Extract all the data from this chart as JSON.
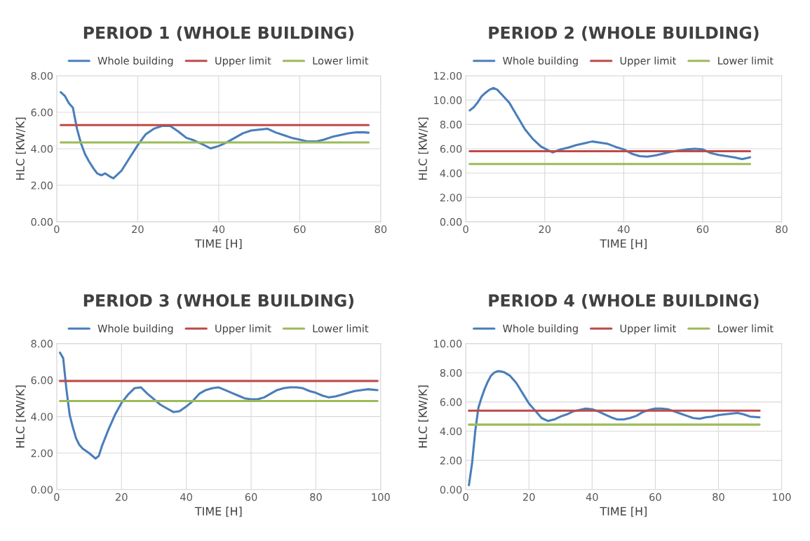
{
  "chart_data": [
    {
      "type": "line",
      "title": "PERIOD 1 (WHOLE BUILDING)",
      "xlabel": "TIME [H]",
      "ylabel": "HLC [KW/K]",
      "xlim": [
        0,
        80
      ],
      "xticks": [
        0,
        20,
        40,
        60,
        80
      ],
      "ylim": [
        0,
        8
      ],
      "yticks": [
        {
          "value": 0,
          "label": "0.00"
        },
        {
          "value": 2,
          "label": "2.00"
        },
        {
          "value": 4,
          "label": "4.00"
        },
        {
          "value": 6,
          "label": "6.00"
        },
        {
          "value": 8,
          "label": "8.00"
        }
      ],
      "grid": true,
      "legend": "top",
      "series": [
        {
          "name": "Whole building",
          "color": "#4a7ebb",
          "x": [
            1,
            2,
            3,
            4,
            5,
            6,
            7,
            8,
            9,
            10,
            11,
            12,
            13,
            14,
            16,
            18,
            20,
            22,
            24,
            26,
            28,
            30,
            32,
            34,
            36,
            38,
            40,
            42,
            44,
            46,
            48,
            50,
            52,
            54,
            56,
            58,
            60,
            62,
            64,
            66,
            68,
            70,
            72,
            74,
            76,
            77
          ],
          "values": [
            7.1,
            6.9,
            6.5,
            6.25,
            5.1,
            4.3,
            3.7,
            3.3,
            2.95,
            2.65,
            2.55,
            2.65,
            2.5,
            2.38,
            2.8,
            3.5,
            4.2,
            4.8,
            5.1,
            5.25,
            5.25,
            4.95,
            4.6,
            4.45,
            4.25,
            4.02,
            4.15,
            4.35,
            4.6,
            4.85,
            5.0,
            5.05,
            5.1,
            4.9,
            4.75,
            4.6,
            4.5,
            4.4,
            4.4,
            4.5,
            4.65,
            4.75,
            4.85,
            4.9,
            4.9,
            4.88
          ]
        },
        {
          "name": "Upper limit",
          "color": "#be4b48",
          "x": [
            1,
            77
          ],
          "values": [
            5.3,
            5.3
          ]
        },
        {
          "name": "Lower limit",
          "color": "#9bbb59",
          "x": [
            1,
            77
          ],
          "values": [
            4.35,
            4.35
          ]
        }
      ]
    },
    {
      "type": "line",
      "title": "PERIOD 2 (WHOLE BUILDING)",
      "xlabel": "TIME [H]",
      "ylabel": "HLC [KW/K]",
      "xlim": [
        0,
        80
      ],
      "xticks": [
        0,
        20,
        40,
        60,
        80
      ],
      "ylim": [
        0,
        12
      ],
      "yticks": [
        {
          "value": 0,
          "label": "0.00"
        },
        {
          "value": 2,
          "label": "2.00"
        },
        {
          "value": 4,
          "label": "4.00"
        },
        {
          "value": 6,
          "label": "6.00"
        },
        {
          "value": 8,
          "label": "8.00"
        },
        {
          "value": 10,
          "label": "10.00"
        },
        {
          "value": 12,
          "label": "12.00"
        }
      ],
      "grid": true,
      "legend": "top",
      "series": [
        {
          "name": "Whole building",
          "color": "#4a7ebb",
          "x": [
            1,
            2,
            3,
            4,
            5,
            6,
            7,
            8,
            9,
            11,
            13,
            15,
            17,
            19,
            21,
            22,
            24,
            26,
            28,
            30,
            32,
            34,
            36,
            38,
            40,
            42,
            44,
            46,
            48,
            50,
            52,
            54,
            56,
            58,
            60,
            62,
            64,
            66,
            68,
            70,
            72
          ],
          "values": [
            9.15,
            9.4,
            9.8,
            10.3,
            10.6,
            10.85,
            11.0,
            10.85,
            10.5,
            9.8,
            8.7,
            7.6,
            6.8,
            6.2,
            5.85,
            5.7,
            5.95,
            6.1,
            6.3,
            6.45,
            6.6,
            6.5,
            6.4,
            6.15,
            5.95,
            5.6,
            5.4,
            5.35,
            5.45,
            5.6,
            5.75,
            5.85,
            5.95,
            6.0,
            5.95,
            5.65,
            5.5,
            5.4,
            5.3,
            5.15,
            5.3
          ]
        },
        {
          "name": "Upper limit",
          "color": "#be4b48",
          "x": [
            1,
            72
          ],
          "values": [
            5.8,
            5.8
          ]
        },
        {
          "name": "Lower limit",
          "color": "#9bbb59",
          "x": [
            1,
            72
          ],
          "values": [
            4.75,
            4.75
          ]
        }
      ]
    },
    {
      "type": "line",
      "title": "PERIOD 3 (WHOLE BUILDING)",
      "xlabel": "TIME [H]",
      "ylabel": "HLC [KW/K]",
      "xlim": [
        0,
        100
      ],
      "xticks": [
        0,
        20,
        40,
        60,
        80,
        100
      ],
      "ylim": [
        0,
        8
      ],
      "yticks": [
        {
          "value": 0,
          "label": "0.00"
        },
        {
          "value": 2,
          "label": "2.00"
        },
        {
          "value": 4,
          "label": "4.00"
        },
        {
          "value": 6,
          "label": "6.00"
        },
        {
          "value": 8,
          "label": "8.00"
        }
      ],
      "grid": true,
      "legend": "top",
      "series": [
        {
          "name": "Whole building",
          "color": "#4a7ebb",
          "x": [
            1,
            2,
            3,
            4,
            5,
            6,
            7,
            8,
            10,
            12,
            13,
            14,
            16,
            18,
            20,
            22,
            24,
            26,
            28,
            30,
            32,
            34,
            36,
            38,
            40,
            42,
            44,
            46,
            48,
            50,
            52,
            54,
            56,
            58,
            60,
            62,
            64,
            66,
            68,
            70,
            72,
            74,
            76,
            78,
            80,
            82,
            84,
            86,
            88,
            90,
            92,
            94,
            96,
            99
          ],
          "values": [
            7.5,
            7.2,
            5.5,
            4.1,
            3.4,
            2.8,
            2.45,
            2.25,
            2.0,
            1.7,
            1.85,
            2.4,
            3.3,
            4.1,
            4.75,
            5.2,
            5.55,
            5.6,
            5.25,
            4.95,
            4.65,
            4.45,
            4.25,
            4.3,
            4.55,
            4.85,
            5.25,
            5.45,
            5.55,
            5.6,
            5.45,
            5.3,
            5.15,
            5.0,
            4.95,
            4.95,
            5.05,
            5.25,
            5.45,
            5.55,
            5.6,
            5.6,
            5.55,
            5.4,
            5.3,
            5.15,
            5.05,
            5.1,
            5.2,
            5.3,
            5.4,
            5.45,
            5.5,
            5.45
          ]
        },
        {
          "name": "Upper limit",
          "color": "#be4b48",
          "x": [
            1,
            99
          ],
          "values": [
            5.95,
            5.95
          ]
        },
        {
          "name": "Lower limit",
          "color": "#9bbb59",
          "x": [
            1,
            99
          ],
          "values": [
            4.85,
            4.85
          ]
        }
      ]
    },
    {
      "type": "line",
      "title": "PERIOD 4 (WHOLE BUILDING)",
      "xlabel": "TIME [H]",
      "ylabel": "HLC [KW/K]",
      "xlim": [
        0,
        100
      ],
      "xticks": [
        0,
        20,
        40,
        60,
        80,
        100
      ],
      "ylim": [
        0,
        10
      ],
      "yticks": [
        {
          "value": 0,
          "label": "0.00"
        },
        {
          "value": 2,
          "label": "2.00"
        },
        {
          "value": 4,
          "label": "4.00"
        },
        {
          "value": 6,
          "label": "6.00"
        },
        {
          "value": 8,
          "label": "8.00"
        },
        {
          "value": 10,
          "label": "10.00"
        }
      ],
      "grid": true,
      "legend": "top",
      "series": [
        {
          "name": "Whole building",
          "color": "#4a7ebb",
          "x": [
            1,
            2,
            3,
            4,
            5,
            6,
            7,
            8,
            9,
            10,
            11,
            12,
            14,
            16,
            18,
            20,
            22,
            24,
            26,
            28,
            30,
            32,
            34,
            36,
            38,
            40,
            42,
            44,
            46,
            48,
            50,
            52,
            54,
            56,
            58,
            60,
            62,
            64,
            66,
            68,
            70,
            72,
            74,
            76,
            78,
            80,
            82,
            84,
            86,
            88,
            90,
            93
          ],
          "values": [
            0.3,
            1.8,
            4.0,
            5.6,
            6.3,
            6.9,
            7.4,
            7.8,
            8.0,
            8.1,
            8.1,
            8.05,
            7.8,
            7.3,
            6.6,
            5.9,
            5.4,
            4.9,
            4.7,
            4.8,
            5.0,
            5.15,
            5.35,
            5.45,
            5.55,
            5.5,
            5.35,
            5.15,
            4.95,
            4.8,
            4.8,
            4.9,
            5.05,
            5.3,
            5.45,
            5.55,
            5.55,
            5.5,
            5.35,
            5.2,
            5.05,
            4.9,
            4.85,
            4.95,
            5.0,
            5.1,
            5.15,
            5.2,
            5.25,
            5.15,
            5.0,
            4.95
          ]
        },
        {
          "name": "Upper limit",
          "color": "#be4b48",
          "x": [
            1,
            93
          ],
          "values": [
            5.4,
            5.4
          ]
        },
        {
          "name": "Lower limit",
          "color": "#9bbb59",
          "x": [
            1,
            93
          ],
          "values": [
            4.45,
            4.45
          ]
        }
      ]
    }
  ]
}
